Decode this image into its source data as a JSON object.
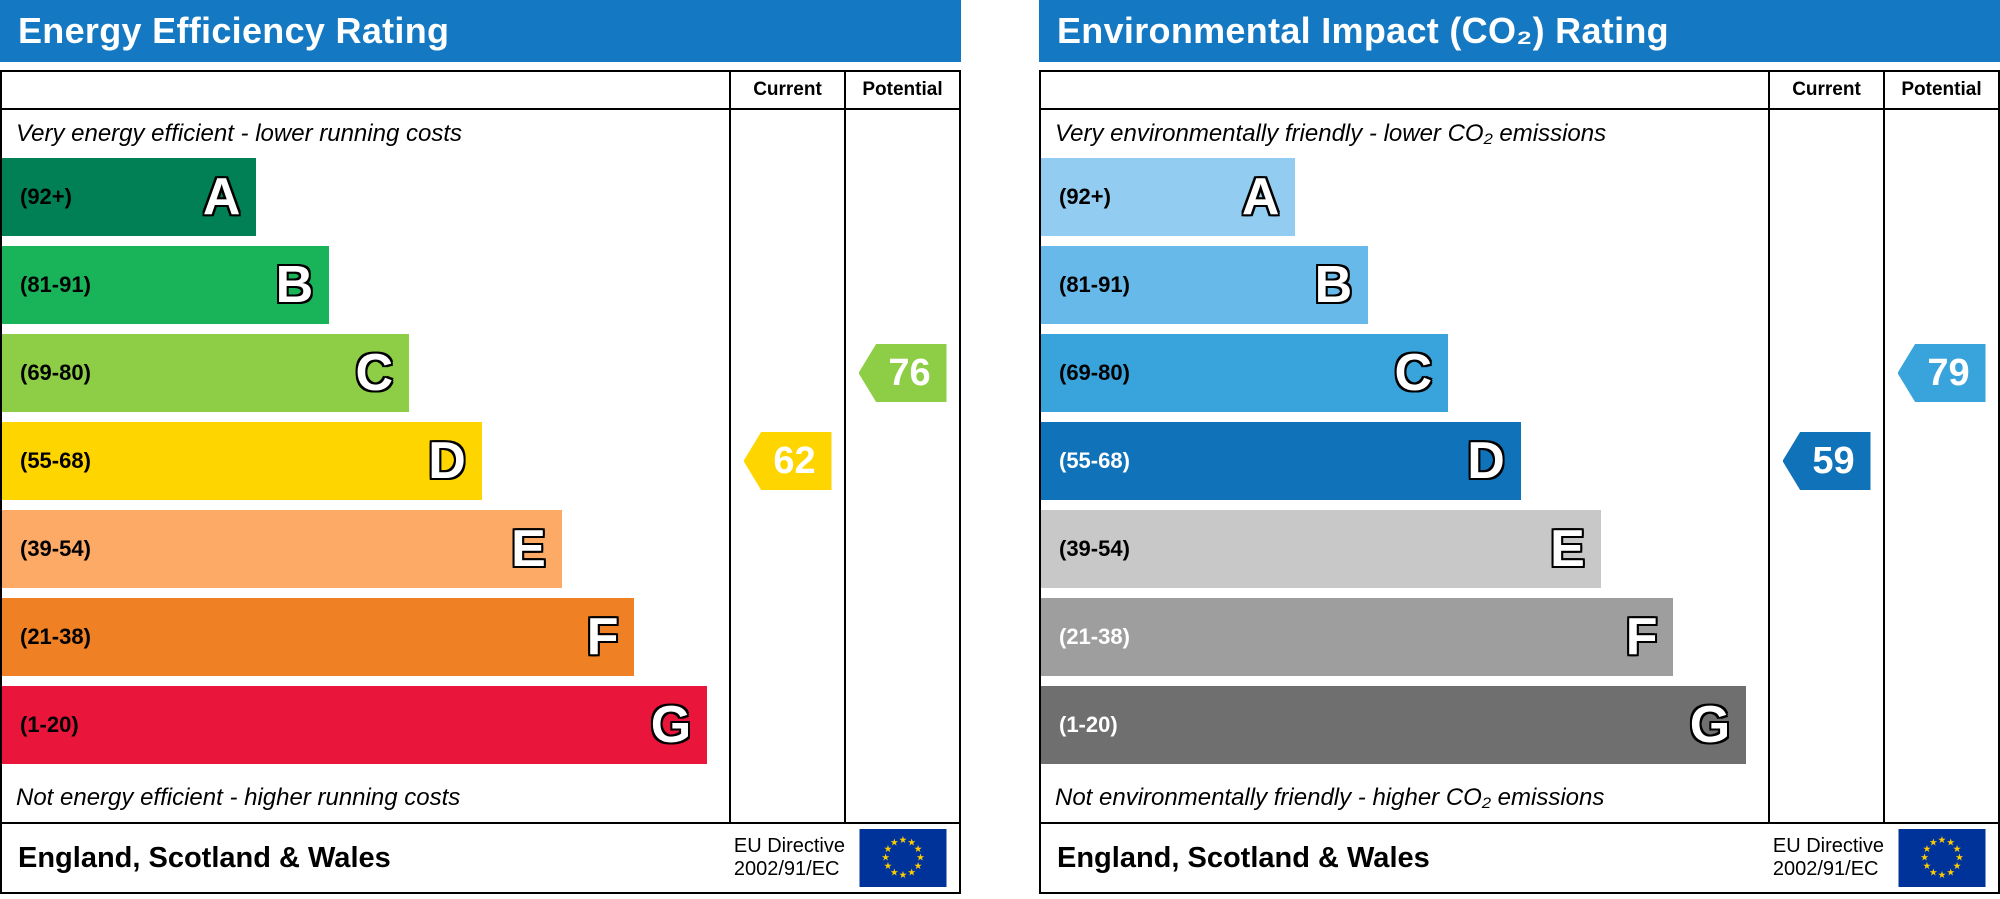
{
  "charts": [
    {
      "title": "Energy Efficiency Rating",
      "header_color": "#1479c2",
      "columns": {
        "current": "Current",
        "potential": "Potential"
      },
      "top_note": "Very energy efficient - lower running costs",
      "bottom_note": "Not energy efficient - higher running costs",
      "bands": [
        {
          "letter": "A",
          "range": "(92+)",
          "min": 92,
          "color": "#008054",
          "width_pct": 35
        },
        {
          "letter": "B",
          "range": "(81-91)",
          "min": 81,
          "color": "#19b459",
          "width_pct": 45
        },
        {
          "letter": "C",
          "range": "(69-80)",
          "min": 69,
          "color": "#8dce46",
          "width_pct": 56
        },
        {
          "letter": "D",
          "range": "(55-68)",
          "min": 55,
          "color": "#ffd500",
          "width_pct": 66
        },
        {
          "letter": "E",
          "range": "(39-54)",
          "min": 39,
          "color": "#fcaa65",
          "width_pct": 77
        },
        {
          "letter": "F",
          "range": "(21-38)",
          "min": 21,
          "color": "#ef8023",
          "width_pct": 87
        },
        {
          "letter": "G",
          "range": "(1-20)",
          "min": 1,
          "color": "#e9153b",
          "width_pct": 97
        }
      ],
      "current": {
        "value": 62,
        "color": "#ffd500"
      },
      "potential": {
        "value": 76,
        "color": "#8dce46"
      },
      "footer": {
        "region": "England, Scotland & Wales",
        "directive_line1": "EU Directive",
        "directive_line2": "2002/91/EC"
      }
    },
    {
      "title": "Environmental Impact (CO₂) Rating",
      "header_color": "#1479c2",
      "columns": {
        "current": "Current",
        "potential": "Potential"
      },
      "top_note": "Very environmentally friendly - lower CO₂ emissions",
      "bottom_note": "Not environmentally friendly - higher CO₂ emissions",
      "bands": [
        {
          "letter": "A",
          "range": "(92+)",
          "min": 92,
          "color": "#92cdf1",
          "width_pct": 35
        },
        {
          "letter": "B",
          "range": "(81-91)",
          "min": 81,
          "color": "#66b9e9",
          "width_pct": 45
        },
        {
          "letter": "C",
          "range": "(69-80)",
          "min": 69,
          "color": "#39a3dc",
          "width_pct": 56
        },
        {
          "letter": "D",
          "range": "(55-68)",
          "min": 55,
          "color": "#1072b9",
          "width_pct": 66,
          "label_color": "#ffffff"
        },
        {
          "letter": "E",
          "range": "(39-54)",
          "min": 39,
          "color": "#c8c8c8",
          "width_pct": 77
        },
        {
          "letter": "F",
          "range": "(21-38)",
          "min": 21,
          "color": "#9e9e9e",
          "width_pct": 87,
          "label_color": "#ffffff"
        },
        {
          "letter": "G",
          "range": "(1-20)",
          "min": 1,
          "color": "#6f6f6f",
          "width_pct": 97,
          "label_color": "#ffffff"
        }
      ],
      "current": {
        "value": 59,
        "color": "#1072b9"
      },
      "potential": {
        "value": 79,
        "color": "#39a3dc"
      },
      "footer": {
        "region": "England, Scotland & Wales",
        "directive_line1": "EU Directive",
        "directive_line2": "2002/91/EC"
      }
    }
  ],
  "eu_flag": {
    "background": "#003399",
    "star_color": "#ffcc00"
  },
  "chart_data": [
    {
      "type": "bar",
      "title": "Energy Efficiency Rating",
      "categories": [
        "A (92+)",
        "B (81-91)",
        "C (69-80)",
        "D (55-68)",
        "E (39-54)",
        "F (21-38)",
        "G (1-20)"
      ],
      "band_colors": [
        "#008054",
        "#19b459",
        "#8dce46",
        "#ffd500",
        "#fcaa65",
        "#ef8023",
        "#e9153b"
      ],
      "series": [
        {
          "name": "Current",
          "values": [
            62
          ],
          "band": "D"
        },
        {
          "name": "Potential",
          "values": [
            76
          ],
          "band": "C"
        }
      ],
      "top_note": "Very energy efficient - lower running costs",
      "bottom_note": "Not energy efficient - higher running costs",
      "footer": "England, Scotland & Wales",
      "directive": "EU Directive 2002/91/EC",
      "value_range": [
        1,
        100
      ]
    },
    {
      "type": "bar",
      "title": "Environmental Impact (CO₂) Rating",
      "categories": [
        "A (92+)",
        "B (81-91)",
        "C (69-80)",
        "D (55-68)",
        "E (39-54)",
        "F (21-38)",
        "G (1-20)"
      ],
      "band_colors": [
        "#92cdf1",
        "#66b9e9",
        "#39a3dc",
        "#1072b9",
        "#c8c8c8",
        "#9e9e9e",
        "#6f6f6f"
      ],
      "series": [
        {
          "name": "Current",
          "values": [
            59
          ],
          "band": "D"
        },
        {
          "name": "Potential",
          "values": [
            79
          ],
          "band": "C"
        }
      ],
      "top_note": "Very environmentally friendly - lower CO₂ emissions",
      "bottom_note": "Not environmentally friendly - higher CO₂ emissions",
      "footer": "England, Scotland & Wales",
      "directive": "EU Directive 2002/91/EC",
      "value_range": [
        1,
        100
      ]
    }
  ]
}
